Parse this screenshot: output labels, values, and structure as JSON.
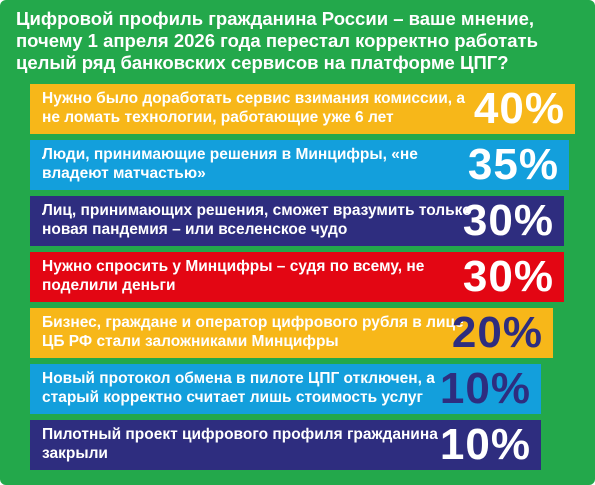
{
  "colors": {
    "background": "#23a84b",
    "yellow": "#f7b719",
    "blue": "#139fdc",
    "navy": "#2e2d7f",
    "red": "#e30613"
  },
  "title": "Цифровой профиль гражданина России – ваше мнение, почему 1 апреля 2026 года перестал корректно работать целый ряд банковских сервисов на платформе ЦПГ?",
  "chart_data": {
    "type": "bar",
    "title": "Цифровой профиль гражданина России – ваше мнение, почему 1 апреля 2026 года перестал корректно работать целый ряд банковских сервисов на платформе ЦПГ?",
    "categories": [
      "Нужно было доработать сервис взимания комиссии, а не ломать технологии, работающие уже 6 лет",
      "Люди, принимающие решения в Минцифры, «не владеют матчастью»",
      "Лиц, принимающих решения, сможет вразумить только новая пандемия – или вселенское чудо",
      "Нужно спросить у Минцифры – судя по всему, не поделили деньги",
      "Бизнес, граждане и оператор цифрового рубля в лице ЦБ РФ стали заложниками Минцифры",
      "Новый протокол обмена в пилоте ЦПГ отключен, а старый корректно считает лишь стоимость услуг",
      "Пилотный проект цифрового профиля гражданина закрыли"
    ],
    "values": [
      40,
      35,
      30,
      30,
      20,
      10,
      10
    ],
    "value_labels": [
      "40%",
      "35%",
      "30%",
      "30%",
      "20%",
      "10%",
      "10%"
    ],
    "bar_colors": [
      "#f7b719",
      "#139fdc",
      "#2e2d7f",
      "#e30613",
      "#f7b719",
      "#139fdc",
      "#2e2d7f"
    ],
    "text_colors": [
      "#ffffff",
      "#ffffff",
      "#ffffff",
      "#ffffff",
      "#2e2d7f",
      "#2e2d7f",
      "#ffffff"
    ],
    "label_colors": [
      "#ffffff",
      "#ffffff",
      "#ffffff",
      "#ffffff",
      "#ffffff",
      "#ffffff",
      "#ffffff"
    ],
    "unit": "%"
  }
}
